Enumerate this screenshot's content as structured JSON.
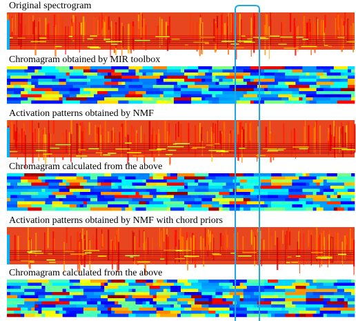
{
  "panels": [
    {
      "label": "Original spectrogram"
    },
    {
      "label": "Chromagram obtained by MIR toolbox"
    },
    {
      "label": "Activation patterns obtained by NMF"
    },
    {
      "label": "Chromagram  calculated from the above"
    },
    {
      "label": "Activation patterns obtained by NMF with chord priors"
    },
    {
      "label": "Chromagram  calculated from the above"
    }
  ]
}
